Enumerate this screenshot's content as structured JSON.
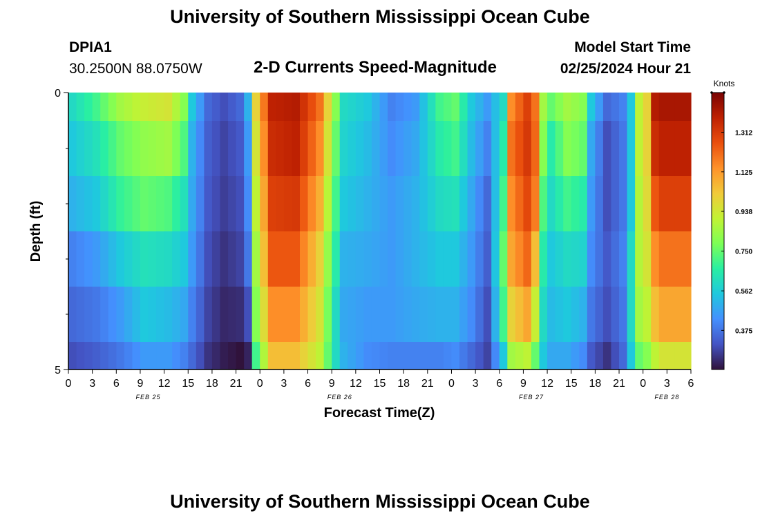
{
  "header": {
    "title": "University of Southern Mississippi Ocean Cube",
    "station": "DPIA1",
    "coords": "30.2500N  88.0750W",
    "subtitle": "2-D Currents Speed-Magnitude",
    "start_label": "Model Start Time",
    "start_value": "02/25/2024 Hour 21"
  },
  "footer": {
    "title": "University of Southern Mississippi Ocean Cube"
  },
  "chart_data": {
    "type": "heatmap",
    "xlabel": "Forecast Time(Z)",
    "ylabel": "Depth (ft)",
    "y_ticks": [
      "0",
      "5"
    ],
    "x_tick_labels": [
      "0",
      "3",
      "6",
      "9",
      "12",
      "15",
      "18",
      "21",
      "0",
      "3",
      "6",
      "9",
      "12",
      "15",
      "18",
      "21",
      "0",
      "3",
      "6",
      "9",
      "12",
      "15",
      "18",
      "21",
      "0",
      "3",
      "6"
    ],
    "date_labels": [
      {
        "label": "FEB 25",
        "hour": 10
      },
      {
        "label": "FEB 26",
        "hour": 34
      },
      {
        "label": "FEB 27",
        "hour": 58
      },
      {
        "label": "FEB 28",
        "hour": 75
      }
    ],
    "colorbar": {
      "unit": "Knots",
      "ticks": [
        "1.312",
        "1.125",
        "0.938",
        "0.750",
        "0.562",
        "0.375"
      ],
      "tick_values": [
        1.312,
        1.125,
        0.938,
        0.75,
        0.562,
        0.375
      ],
      "min": 0.19,
      "max": 1.5,
      "colors": [
        "#30123b",
        "#4454c4",
        "#4490fe",
        "#1fc8de",
        "#29efa2",
        "#7dff56",
        "#c1f334",
        "#f1ca3a",
        "#fe922a",
        "#ea4f0d",
        "#be2102",
        "#7a0403"
      ]
    },
    "depth_layers": 6,
    "hours_count": 78,
    "speed_keys": [
      [
        0,
        0.6,
        0.55,
        0.5,
        0.4,
        0.35,
        0.3
      ],
      [
        3,
        0.7,
        0.62,
        0.55,
        0.45,
        0.38,
        0.33
      ],
      [
        6,
        0.85,
        0.75,
        0.68,
        0.55,
        0.45,
        0.38
      ],
      [
        9,
        0.92,
        0.82,
        0.75,
        0.62,
        0.55,
        0.45
      ],
      [
        12,
        0.95,
        0.85,
        0.72,
        0.6,
        0.52,
        0.45
      ],
      [
        14,
        0.8,
        0.72,
        0.62,
        0.55,
        0.48,
        0.4
      ],
      [
        15,
        0.55,
        0.5,
        0.48,
        0.45,
        0.4,
        0.35
      ],
      [
        17,
        0.35,
        0.33,
        0.32,
        0.3,
        0.28,
        0.25
      ],
      [
        19,
        0.3,
        0.28,
        0.27,
        0.25,
        0.23,
        0.21
      ],
      [
        21,
        0.35,
        0.32,
        0.3,
        0.28,
        0.24,
        0.19
      ],
      [
        22,
        0.5,
        0.45,
        0.42,
        0.38,
        0.3,
        0.22
      ],
      [
        23,
        1.0,
        0.95,
        0.9,
        0.85,
        0.8,
        0.7
      ],
      [
        25,
        1.38,
        1.35,
        1.3,
        1.25,
        1.15,
        1.05
      ],
      [
        28,
        1.4,
        1.38,
        1.32,
        1.25,
        1.15,
        1.05
      ],
      [
        31,
        1.2,
        1.15,
        1.08,
        1.0,
        0.95,
        0.9
      ],
      [
        33,
        0.8,
        0.75,
        0.7,
        0.65,
        0.6,
        0.6
      ],
      [
        34,
        0.6,
        0.58,
        0.55,
        0.5,
        0.48,
        0.5
      ],
      [
        37,
        0.55,
        0.52,
        0.5,
        0.48,
        0.45,
        0.42
      ],
      [
        40,
        0.4,
        0.42,
        0.45,
        0.45,
        0.45,
        0.4
      ],
      [
        43,
        0.45,
        0.48,
        0.5,
        0.5,
        0.48,
        0.4
      ],
      [
        46,
        0.7,
        0.65,
        0.6,
        0.55,
        0.5,
        0.4
      ],
      [
        48,
        0.75,
        0.7,
        0.62,
        0.55,
        0.5,
        0.42
      ],
      [
        50,
        0.55,
        0.52,
        0.48,
        0.45,
        0.42,
        0.35
      ],
      [
        52,
        0.45,
        0.4,
        0.35,
        0.33,
        0.3,
        0.28
      ],
      [
        54,
        0.6,
        0.65,
        0.7,
        0.75,
        0.7,
        0.55
      ],
      [
        55,
        1.15,
        1.2,
        1.15,
        1.1,
        1.0,
        0.85
      ],
      [
        57,
        1.3,
        1.32,
        1.28,
        1.22,
        1.1,
        0.9
      ],
      [
        58,
        1.2,
        1.22,
        1.18,
        1.05,
        0.92,
        0.75
      ],
      [
        59,
        0.85,
        0.8,
        0.72,
        0.65,
        0.6,
        0.55
      ],
      [
        60,
        0.75,
        0.65,
        0.6,
        0.55,
        0.52,
        0.48
      ],
      [
        62,
        0.85,
        0.8,
        0.7,
        0.6,
        0.55,
        0.48
      ],
      [
        64,
        0.8,
        0.75,
        0.65,
        0.58,
        0.5,
        0.42
      ],
      [
        65,
        0.55,
        0.48,
        0.45,
        0.42,
        0.38,
        0.32
      ],
      [
        67,
        0.35,
        0.3,
        0.3,
        0.32,
        0.3,
        0.25
      ],
      [
        69,
        0.4,
        0.38,
        0.38,
        0.4,
        0.38,
        0.35
      ],
      [
        70,
        0.55,
        0.55,
        0.55,
        0.6,
        0.6,
        0.55
      ],
      [
        71,
        0.9,
        0.9,
        0.88,
        0.88,
        0.85,
        0.75
      ],
      [
        72,
        1.0,
        1.0,
        0.98,
        0.95,
        0.9,
        0.8
      ],
      [
        73,
        1.4,
        1.35,
        1.25,
        1.15,
        1.05,
        0.9
      ],
      [
        74,
        1.42,
        1.38,
        1.3,
        1.2,
        1.1,
        0.95
      ],
      [
        77,
        1.42,
        1.38,
        1.3,
        1.2,
        1.1,
        0.95
      ]
    ]
  }
}
